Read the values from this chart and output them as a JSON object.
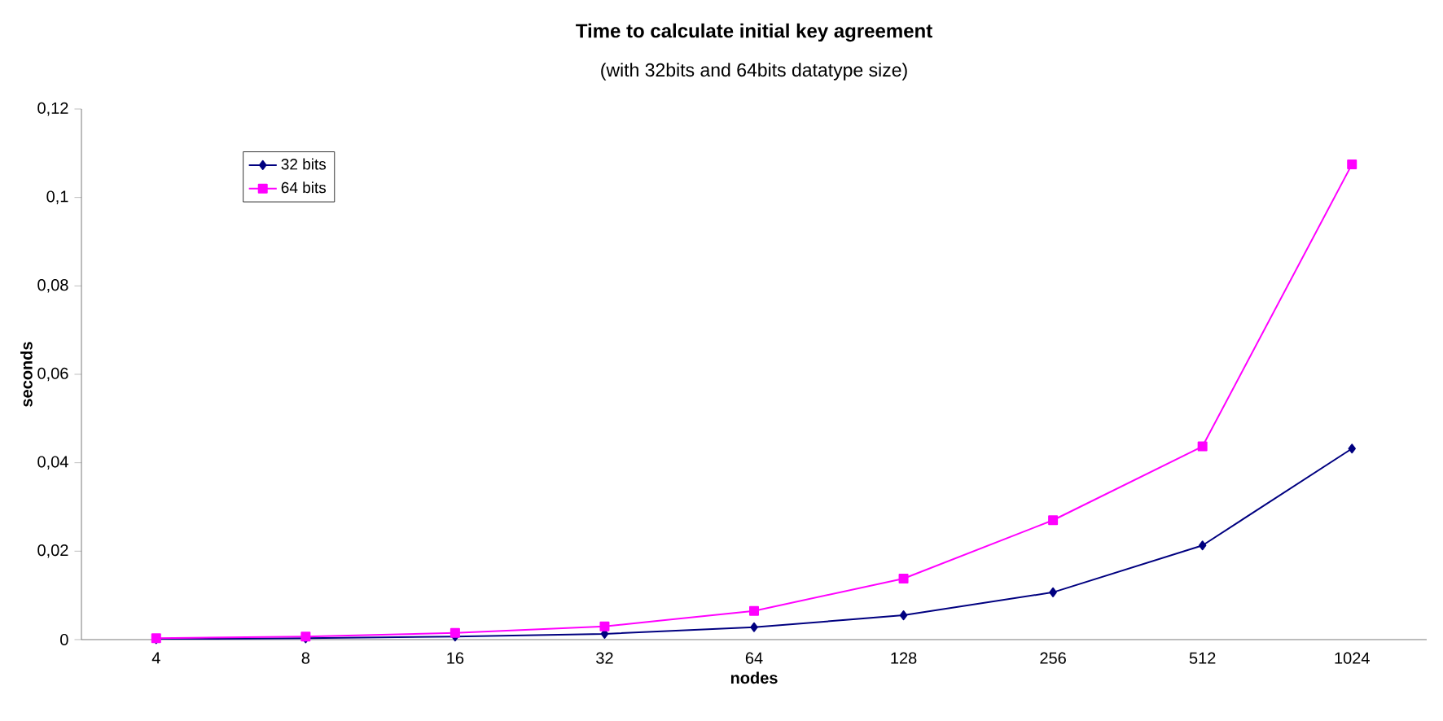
{
  "chart_data": {
    "type": "line",
    "title": "Time to calculate initial key agreement",
    "subtitle": "(with 32bits and 64bits datatype size)",
    "xlabel": "nodes",
    "ylabel": "seconds",
    "categories": [
      "4",
      "8",
      "16",
      "32",
      "64",
      "128",
      "256",
      "512",
      "1024"
    ],
    "series": [
      {
        "name": "32 bits",
        "color": "#000080",
        "marker": "diamond",
        "values": [
          0.0001,
          0.0003,
          0.0007,
          0.0013,
          0.0028,
          0.0055,
          0.0107,
          0.0213,
          0.0432
        ]
      },
      {
        "name": "64 bits",
        "color": "#ff00ff",
        "marker": "square",
        "values": [
          0.0003,
          0.0007,
          0.0015,
          0.003,
          0.0065,
          0.0138,
          0.027,
          0.0437,
          0.1075
        ]
      }
    ],
    "ylim": [
      0,
      0.12
    ],
    "yticks": [
      0,
      {
        "value": 0.02,
        "label": "0,02"
      },
      {
        "value": 0.04,
        "label": "0,04"
      },
      {
        "value": 0.06,
        "label": "0,06"
      },
      {
        "value": 0.08,
        "label": "0,08"
      },
      {
        "value": 0.1,
        "label": "0,1"
      },
      {
        "value": 0.12,
        "label": "0,12"
      }
    ],
    "legend": "top left",
    "grid": false
  }
}
